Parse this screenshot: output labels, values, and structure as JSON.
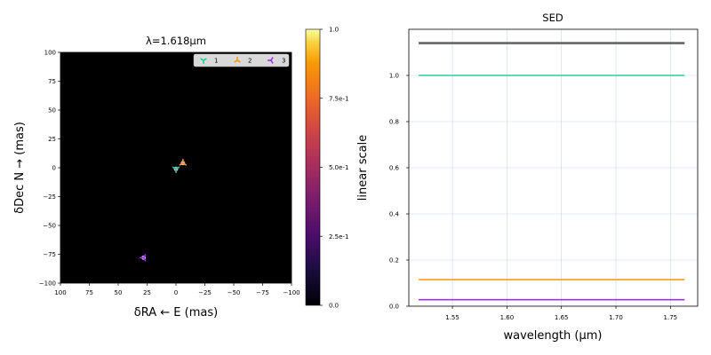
{
  "chart_data": [
    {
      "type": "scatter",
      "title": "λ=1.618μm",
      "xlabel": "δRA ← E (mas)",
      "ylabel": "δDec N → (mas)",
      "xlim": [
        100,
        -100
      ],
      "ylim": [
        -100,
        100
      ],
      "background": "#000000",
      "xticks": [
        "100",
        "75",
        "50",
        "25",
        "0",
        "−25",
        "−50",
        "−75",
        "−100"
      ],
      "yticks": [
        "100",
        "75",
        "50",
        "25",
        "0",
        "−25",
        "−50",
        "−75",
        "−100"
      ],
      "legend": {
        "placement": "top-right",
        "entries": [
          "1",
          "2",
          "3"
        ]
      },
      "series": [
        {
          "name": "1",
          "color": "#2ecc9a",
          "marker": "tri_down",
          "points": [
            [
              0,
              -1
            ]
          ]
        },
        {
          "name": "2",
          "color": "#ff9a1a",
          "marker": "tri_up",
          "points": [
            [
              -6,
              4
            ]
          ]
        },
        {
          "name": "3",
          "color": "#9b30ff",
          "marker": "tri_left",
          "points": [
            [
              28,
              -78
            ]
          ]
        }
      ],
      "colorbar": {
        "label": "linear scale",
        "colormap": "inferno",
        "range": [
          0.0,
          1.0
        ],
        "ticks": [
          "1.0",
          "7.5e-1",
          "5.0e-1",
          "2.5e-1",
          "0.0"
        ]
      }
    },
    {
      "type": "line",
      "title": "SED",
      "xlabel": "wavelength (μm)",
      "ylabel": "",
      "xlim": [
        1.51,
        1.775
      ],
      "ylim": [
        0.0,
        1.2
      ],
      "grid": true,
      "xticks": [
        "1.55",
        "1.60",
        "1.65",
        "1.70",
        "1.75"
      ],
      "yticks": [
        "0.0",
        "0.2",
        "0.4",
        "0.6",
        "0.8",
        "1.0"
      ],
      "series": [
        {
          "color": "#666666",
          "x": [
            1.519,
            1.763
          ],
          "y": [
            1.14,
            1.14
          ]
        },
        {
          "color": "#2ecc9a",
          "x": [
            1.519,
            1.763
          ],
          "y": [
            1.0,
            1.0
          ]
        },
        {
          "color": "#ff9a1a",
          "x": [
            1.519,
            1.763
          ],
          "y": [
            0.115,
            0.115
          ]
        },
        {
          "color": "#9b30ff",
          "x": [
            1.519,
            1.763
          ],
          "y": [
            0.028,
            0.028
          ]
        }
      ]
    }
  ]
}
